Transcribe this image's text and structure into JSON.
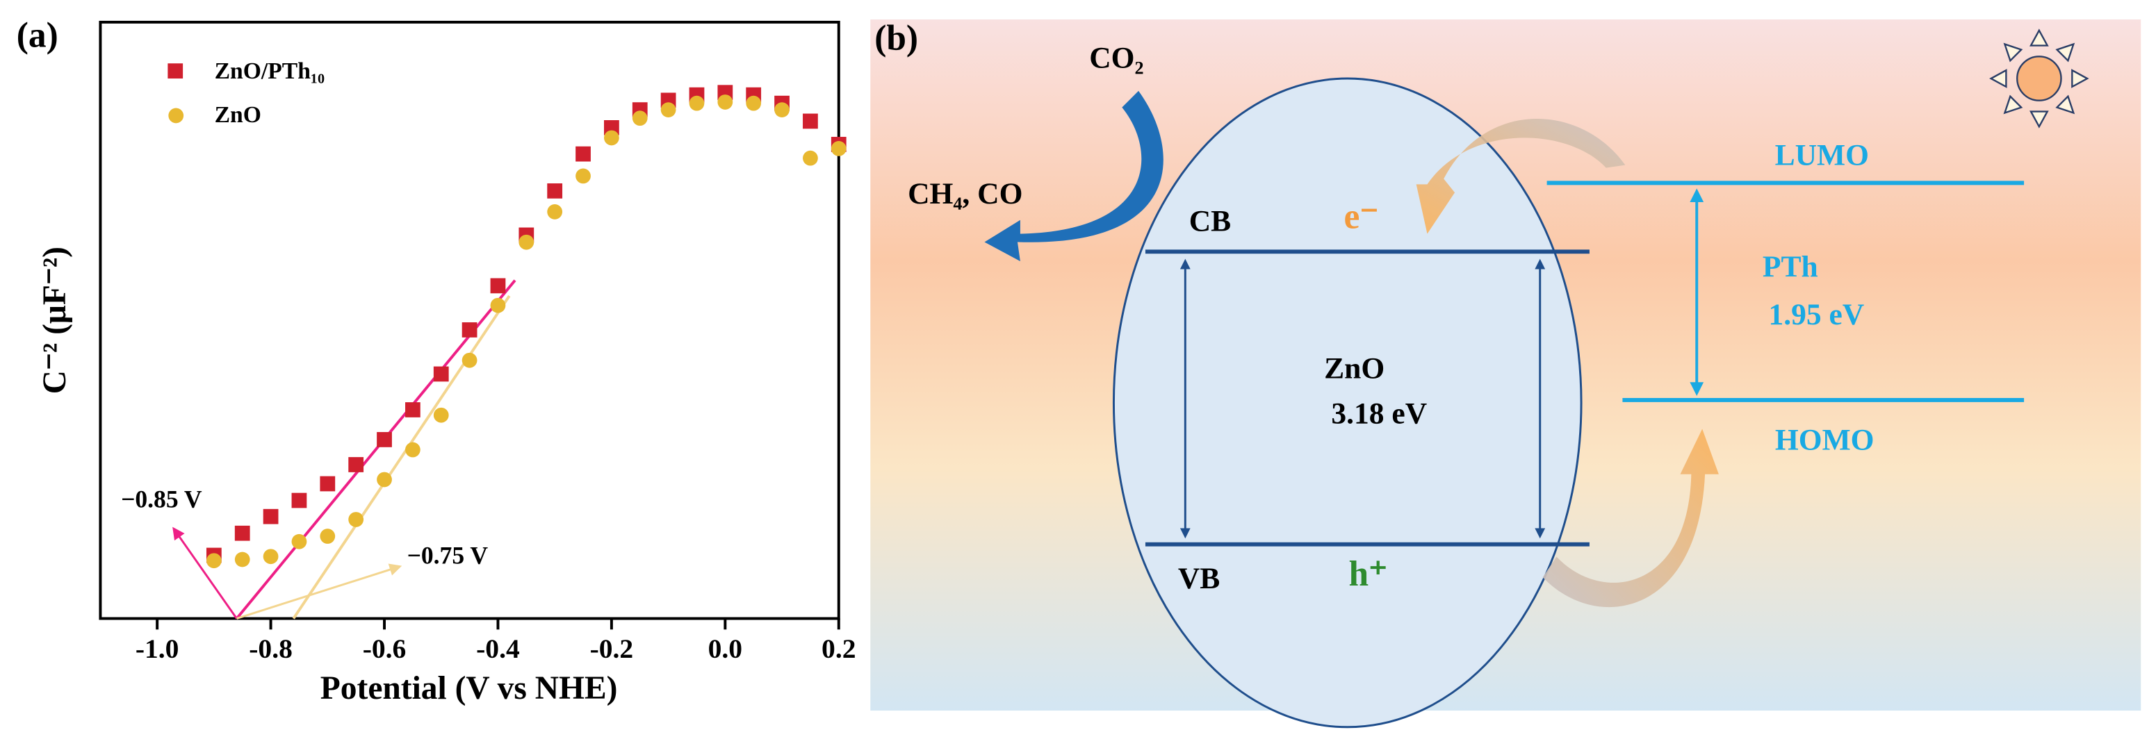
{
  "chart_data": {
    "type": "scatter",
    "panel_label": "(a)",
    "xlabel": "Potential (V vs NHE)",
    "ylabel": "C⁻² (μF⁻²)",
    "xlim": [
      -1.1,
      0.2
    ],
    "xticks": [
      {
        "value": -1,
        "label": "-1.0"
      },
      -0.8,
      -0.6,
      -0.4,
      -0.2,
      {
        "value": 0,
        "label": "0.0"
      },
      0.2
    ],
    "ylim": [
      0,
      100
    ],
    "x": [
      -0.9,
      -0.85,
      -0.8,
      -0.75,
      -0.7,
      -0.65,
      -0.6,
      -0.55,
      -0.5,
      -0.45,
      -0.4,
      -0.35,
      -0.3,
      -0.25,
      -0.2,
      -0.15,
      -0.1,
      -0.05,
      0.0,
      0.05,
      0.1,
      0.15,
      0.2
    ],
    "series": [
      {
        "name": "ZnO/PTh₁₀",
        "color": "#d0202e",
        "marker": "square",
        "values": [
          10.6,
          14.3,
          17.1,
          19.8,
          22.6,
          25.8,
          30.0,
          35.0,
          41.0,
          48.4,
          55.8,
          64.3,
          71.7,
          77.9,
          82.3,
          85.3,
          86.9,
          87.8,
          88.2,
          87.8,
          86.4,
          83.4,
          79.5
        ]
      },
      {
        "name": "ZnO",
        "color": "#e8b830",
        "marker": "circle",
        "values": [
          9.7,
          9.9,
          10.4,
          12.9,
          13.8,
          16.6,
          23.3,
          28.3,
          34.1,
          43.3,
          52.5,
          63.1,
          68.2,
          74.2,
          80.6,
          83.9,
          85.3,
          86.4,
          86.6,
          86.4,
          85.3,
          77.2,
          78.8
        ]
      }
    ],
    "fit_lines": [
      {
        "color": "#ee1f86",
        "x": [
          -0.86,
          -0.37
        ],
        "y": [
          0,
          56.7
        ]
      },
      {
        "color": "#f3d58f",
        "x": [
          -0.76,
          -0.38
        ],
        "y": [
          0,
          54.1
        ]
      }
    ],
    "annotations": [
      "−0.85 V",
      "−0.75 V"
    ]
  },
  "diagram": {
    "panel_label": "(b)",
    "reactant": "CO₂",
    "products": "CH₄, CO",
    "zno": {
      "cb": "CB",
      "vb": "VB",
      "electron": "e⁻",
      "hole": "h⁺",
      "name": "ZnO",
      "gap": "3.18 eV"
    },
    "pth": {
      "lumo": "LUMO",
      "homo": "HOMO",
      "name": "PTh",
      "gap": "1.95 eV"
    }
  }
}
